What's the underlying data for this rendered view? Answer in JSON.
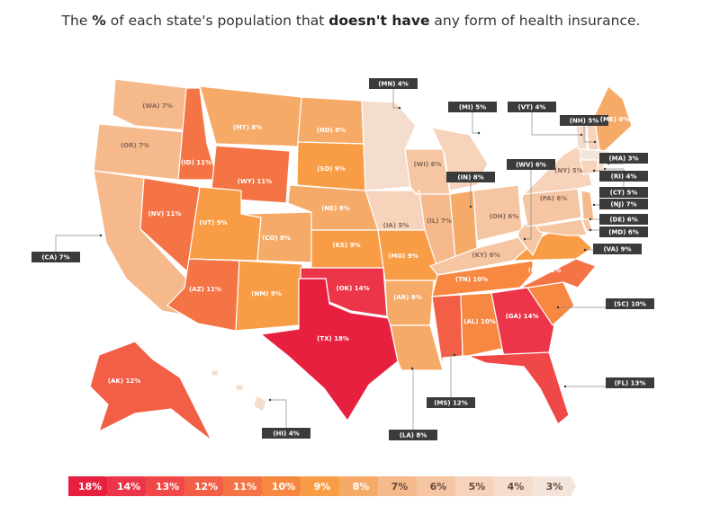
{
  "title": {
    "pre": "The ",
    "pct": "%",
    "mid": " of each state's population that ",
    "bold": "doesn't have",
    "post": " any form of health insurance."
  },
  "colors": {
    "18": "#e8203f",
    "14": "#ec3548",
    "13": "#f04846",
    "12": "#f25e46",
    "11": "#f47445",
    "10": "#f68842",
    "9": "#f89c45",
    "8": "#f6aa68",
    "7": "#f5b98c",
    "6": "#f6c6a3",
    "5": "#f6d3ba",
    "4": "#f5ddcd",
    "3": "#f4e5dc",
    "callout": "#3b3b3b"
  },
  "legend": [
    "18%",
    "14%",
    "13%",
    "12%",
    "11%",
    "10%",
    "9%",
    "8%",
    "7%",
    "6%",
    "5%",
    "4%",
    "3%"
  ],
  "states": [
    {
      "code": "WA",
      "value": 7,
      "label": "(WA) 7%"
    },
    {
      "code": "OR",
      "value": 7,
      "label": "(OR) 7%"
    },
    {
      "code": "CA",
      "value": 7,
      "label": "(CA) 7%"
    },
    {
      "code": "NV",
      "value": 11,
      "label": "(NV) 11%"
    },
    {
      "code": "ID",
      "value": 11,
      "label": "(ID) 11%"
    },
    {
      "code": "MT",
      "value": 8,
      "label": "(MT) 8%"
    },
    {
      "code": "WY",
      "value": 11,
      "label": "(WY) 11%"
    },
    {
      "code": "UT",
      "value": 9,
      "label": "(UT) 9%"
    },
    {
      "code": "CO",
      "value": 8,
      "label": "(CO) 8%"
    },
    {
      "code": "AZ",
      "value": 11,
      "label": "(AZ) 11%"
    },
    {
      "code": "NM",
      "value": 9,
      "label": "(NM) 9%"
    },
    {
      "code": "ND",
      "value": 8,
      "label": "(ND) 8%"
    },
    {
      "code": "SD",
      "value": 9,
      "label": "(SD) 9%"
    },
    {
      "code": "NE",
      "value": 8,
      "label": "(NE) 8%"
    },
    {
      "code": "KS",
      "value": 9,
      "label": "(KS) 9%"
    },
    {
      "code": "OK",
      "value": 14,
      "label": "(OK) 14%"
    },
    {
      "code": "TX",
      "value": 18,
      "label": "(TX) 18%"
    },
    {
      "code": "MN",
      "value": 4,
      "label": "(MN) 4%"
    },
    {
      "code": "IA",
      "value": 5,
      "label": "(IA) 5%"
    },
    {
      "code": "MO",
      "value": 9,
      "label": "(MO) 9%"
    },
    {
      "code": "AR",
      "value": 8,
      "label": "(AR) 8%"
    },
    {
      "code": "LA",
      "value": 8,
      "label": "(LA) 8%"
    },
    {
      "code": "WI",
      "value": 6,
      "label": "(WI) 6%"
    },
    {
      "code": "IL",
      "value": 7,
      "label": "(IL) 7%"
    },
    {
      "code": "MI",
      "value": 5,
      "label": "(MI) 5%"
    },
    {
      "code": "IN",
      "value": 8,
      "label": "(IN) 8%"
    },
    {
      "code": "OH",
      "value": 6,
      "label": "(OH) 6%"
    },
    {
      "code": "KY",
      "value": 6,
      "label": "(KY) 6%"
    },
    {
      "code": "TN",
      "value": 10,
      "label": "(TN) 10%"
    },
    {
      "code": "MS",
      "value": 12,
      "label": "(MS) 12%"
    },
    {
      "code": "AL",
      "value": 10,
      "label": "(AL) 10%"
    },
    {
      "code": "GA",
      "value": 14,
      "label": "(GA) 14%"
    },
    {
      "code": "FL",
      "value": 13,
      "label": "(FL) 13%"
    },
    {
      "code": "SC",
      "value": 10,
      "label": "(SC) 10%"
    },
    {
      "code": "NC",
      "value": 11,
      "label": "(NC) 11%"
    },
    {
      "code": "VA",
      "value": 9,
      "label": "(VA) 9%"
    },
    {
      "code": "WV",
      "value": 6,
      "label": "(WV) 6%"
    },
    {
      "code": "PA",
      "value": 6,
      "label": "(PA) 6%"
    },
    {
      "code": "NY",
      "value": 5,
      "label": "(NY) 5%"
    },
    {
      "code": "MD",
      "value": 6,
      "label": "(MD) 6%"
    },
    {
      "code": "DE",
      "value": 6,
      "label": "(DE) 6%"
    },
    {
      "code": "NJ",
      "value": 7,
      "label": "(NJ) 7%"
    },
    {
      "code": "VT",
      "value": 4,
      "label": "(VT) 4%"
    },
    {
      "code": "NH",
      "value": 5,
      "label": "(NH) 5%"
    },
    {
      "code": "ME",
      "value": 8,
      "label": "(ME) 8%"
    },
    {
      "code": "MA",
      "value": 3,
      "label": "(MA) 3%"
    },
    {
      "code": "CT",
      "value": 5,
      "label": "(CT) 5%"
    },
    {
      "code": "RI",
      "value": 4,
      "label": "(RI) 4%"
    },
    {
      "code": "AK",
      "value": 12,
      "label": "(AK) 12%"
    },
    {
      "code": "HI",
      "value": 4,
      "label": "(HI) 4%"
    }
  ]
}
